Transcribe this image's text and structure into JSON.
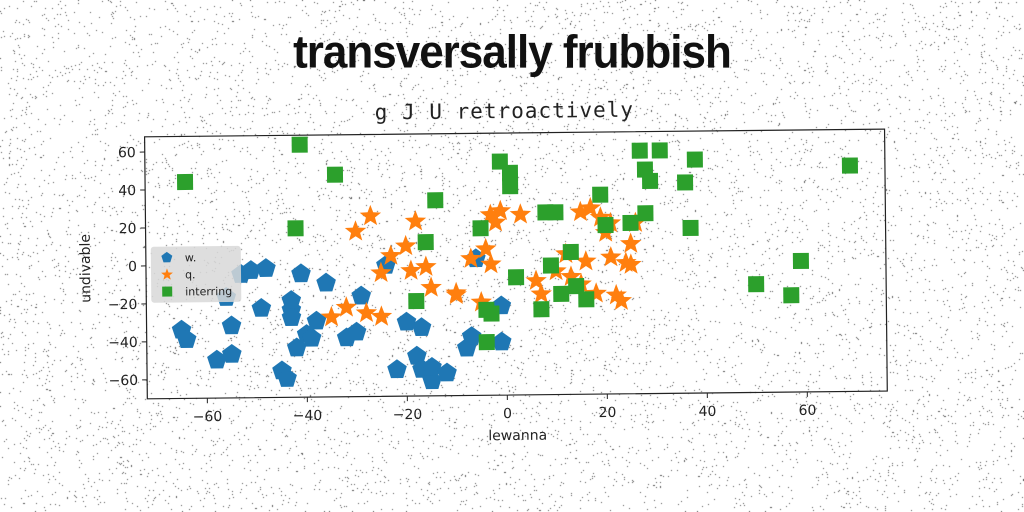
{
  "headline": "transversally frubbish",
  "chart_data": {
    "type": "scatter",
    "title": "g J U retroactively",
    "xlabel": "lewanna",
    "ylabel": "undivable",
    "xlim": [
      -72,
      76
    ],
    "ylim": [
      -70,
      68
    ],
    "xticks": [
      -60,
      -40,
      -20,
      0,
      20,
      40,
      60
    ],
    "yticks": [
      -60,
      -40,
      -20,
      0,
      20,
      40,
      60
    ],
    "xtick_labels": [
      "−60",
      "−40",
      "−20",
      "0",
      "20",
      "40",
      "60"
    ],
    "ytick_labels": [
      "−60",
      "−40",
      "−20",
      "0",
      "20",
      "40",
      "60"
    ],
    "legend_position": "center-left",
    "grid": false,
    "series": [
      {
        "name": "w.",
        "marker": "pentagon",
        "color": "#1f77b4",
        "points": [
          [
            -65,
            -34
          ],
          [
            -64,
            -39
          ],
          [
            -58,
            -50
          ],
          [
            -56,
            -17
          ],
          [
            -55,
            -32
          ],
          [
            -55,
            -47
          ],
          [
            -53,
            -5
          ],
          [
            -51,
            -3
          ],
          [
            -49,
            -23
          ],
          [
            -48,
            -2
          ],
          [
            -45,
            -56
          ],
          [
            -44,
            -60
          ],
          [
            -43,
            -24
          ],
          [
            -43,
            -28
          ],
          [
            -43,
            -19
          ],
          [
            -42,
            -44
          ],
          [
            -41,
            -5
          ],
          [
            -40,
            -37
          ],
          [
            -39,
            -39
          ],
          [
            -38,
            -30
          ],
          [
            -36,
            -10
          ],
          [
            -32,
            -39
          ],
          [
            -30,
            -36
          ],
          [
            -29,
            -17
          ],
          [
            -24,
            -1
          ],
          [
            -22,
            -56
          ],
          [
            -20,
            -31
          ],
          [
            -18,
            -49
          ],
          [
            -17,
            -34
          ],
          [
            -17,
            -56
          ],
          [
            -15,
            -62
          ],
          [
            -15,
            -55
          ],
          [
            -12,
            -58
          ],
          [
            -8,
            -45
          ],
          [
            -7,
            -39
          ],
          [
            -6,
            2
          ],
          [
            -1,
            -23
          ],
          [
            -1,
            -42
          ]
        ]
      },
      {
        "name": "q.",
        "marker": "star",
        "color": "#ff7f0e",
        "points": [
          [
            -35,
            -28
          ],
          [
            -32,
            -23
          ],
          [
            -30,
            17
          ],
          [
            -28,
            -26
          ],
          [
            -27,
            25
          ],
          [
            -25,
            -28
          ],
          [
            -25,
            -5
          ],
          [
            -23,
            4
          ],
          [
            -20,
            9
          ],
          [
            -19,
            -4
          ],
          [
            -18,
            22
          ],
          [
            -16,
            -2
          ],
          [
            -15,
            -13
          ],
          [
            -10,
            -17
          ],
          [
            -10,
            -16
          ],
          [
            -7,
            2
          ],
          [
            -5,
            -21
          ],
          [
            -4,
            7
          ],
          [
            -3,
            25
          ],
          [
            -3,
            -1
          ],
          [
            -2,
            21
          ],
          [
            -1,
            27
          ],
          [
            3,
            25
          ],
          [
            6,
            -10
          ],
          [
            7,
            -17
          ],
          [
            10,
            -5
          ],
          [
            12,
            4
          ],
          [
            13,
            -8
          ],
          [
            15,
            -12
          ],
          [
            15,
            26
          ],
          [
            16,
            0
          ],
          [
            17,
            28
          ],
          [
            18,
            -17
          ],
          [
            19,
            23
          ],
          [
            20,
            15
          ],
          [
            21,
            20
          ],
          [
            21,
            2
          ],
          [
            22,
            -18
          ],
          [
            23,
            -21
          ],
          [
            24,
            -1
          ],
          [
            25,
            -2
          ],
          [
            25,
            9
          ],
          [
            26,
            20
          ]
        ]
      },
      {
        "name": "interring",
        "marker": "square",
        "color": "#2ca02c",
        "points": [
          [
            -64,
            44
          ],
          [
            -42,
            19
          ],
          [
            -41,
            63
          ],
          [
            -34,
            47
          ],
          [
            -18,
            -20
          ],
          [
            -16,
            11
          ],
          [
            -14,
            33
          ],
          [
            -5,
            18
          ],
          [
            -4,
            -25
          ],
          [
            -4,
            -42
          ],
          [
            -3,
            -27
          ],
          [
            -1,
            53
          ],
          [
            1,
            47
          ],
          [
            1,
            40
          ],
          [
            2,
            -8
          ],
          [
            7,
            -25
          ],
          [
            8,
            26
          ],
          [
            9,
            -2
          ],
          [
            10,
            26
          ],
          [
            11,
            -17
          ],
          [
            13,
            5
          ],
          [
            14,
            -13
          ],
          [
            16,
            -20
          ],
          [
            19,
            35
          ],
          [
            20,
            19
          ],
          [
            25,
            20
          ],
          [
            27,
            58
          ],
          [
            28,
            25
          ],
          [
            28,
            48
          ],
          [
            29,
            42
          ],
          [
            31,
            58
          ],
          [
            36,
            41
          ],
          [
            37,
            17
          ],
          [
            38,
            53
          ],
          [
            50,
            -13
          ],
          [
            57,
            -19
          ],
          [
            59,
            -1
          ],
          [
            69,
            49
          ]
        ]
      }
    ]
  }
}
